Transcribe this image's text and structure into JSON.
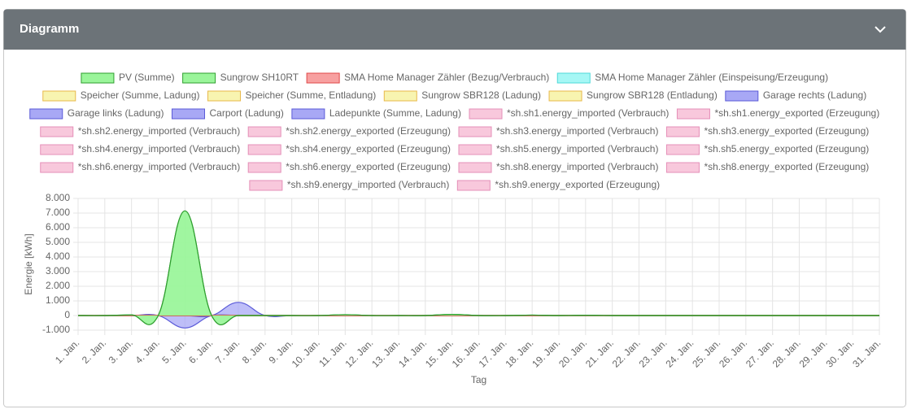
{
  "header": {
    "title": "Diagramm"
  },
  "chart_data": {
    "type": "area",
    "x_label": "Tag",
    "y_label": "Energie [kWh]",
    "categories": [
      "1. Jan.",
      "2. Jan.",
      "3. Jan.",
      "4. Jan.",
      "5. Jan.",
      "6. Jan.",
      "7. Jan.",
      "8. Jan.",
      "9. Jan.",
      "10. Jan.",
      "11. Jan.",
      "12. Jan.",
      "13. Jan.",
      "14. Jan.",
      "15. Jan.",
      "16. Jan.",
      "17. Jan.",
      "18. Jan.",
      "19. Jan.",
      "20. Jan.",
      "21. Jan.",
      "22. Jan.",
      "23. Jan.",
      "24. Jan.",
      "25. Jan.",
      "26. Jan.",
      "27. Jan.",
      "28. Jan.",
      "29. Jan.",
      "30. Jan.",
      "31. Jan."
    ],
    "ylim": [
      -1000,
      8000
    ],
    "yticks": [
      {
        "value": -1000,
        "label": "-1.000"
      },
      0,
      {
        "value": 1000,
        "label": "1.000"
      },
      {
        "value": 2000,
        "label": "2.000"
      },
      {
        "value": 3000,
        "label": "3.000"
      },
      {
        "value": 4000,
        "label": "4.000"
      },
      {
        "value": 5000,
        "label": "5.000"
      },
      {
        "value": 6000,
        "label": "6.000"
      },
      {
        "value": 7000,
        "label": "7.000"
      },
      {
        "value": 8000,
        "label": "8.000"
      }
    ],
    "grid": true,
    "series": [
      {
        "name": "PV (Summe)",
        "color": "#2f9e2f",
        "fill": "#9af59a",
        "values": [
          0,
          0,
          40,
          0,
          7150,
          0,
          0,
          0,
          0,
          0,
          60,
          0,
          0,
          0,
          80,
          0,
          0,
          30,
          0,
          20,
          0,
          0,
          0,
          0,
          0,
          0,
          0,
          0,
          0,
          0,
          0
        ]
      },
      {
        "name": "Sungrow SH10RT",
        "color": "#2f9e2f",
        "fill": "#9af59a",
        "values": [
          0,
          0,
          40,
          0,
          7150,
          0,
          0,
          0,
          0,
          0,
          60,
          0,
          0,
          0,
          80,
          0,
          0,
          30,
          0,
          20,
          0,
          0,
          0,
          0,
          0,
          0,
          0,
          0,
          0,
          0,
          0
        ]
      },
      {
        "name": "SMA Home Manager Zähler (Bezug/Verbrauch)",
        "color": "#e04848",
        "fill": "#f7a0a0",
        "values": [
          0,
          0,
          0,
          0,
          0,
          0,
          0,
          0,
          0,
          0,
          0,
          0,
          0,
          0,
          0,
          0,
          0,
          0,
          0,
          0,
          0,
          0,
          0,
          0,
          0,
          0,
          0,
          0,
          0,
          0,
          0
        ]
      },
      {
        "name": "SMA Home Manager Zähler (Einspeisung/Erzeugung)",
        "color": "#4fd8d8",
        "fill": "#a6f7f5",
        "values": [
          0,
          0,
          0,
          0,
          0,
          0,
          0,
          0,
          0,
          0,
          0,
          0,
          0,
          0,
          0,
          0,
          0,
          0,
          0,
          0,
          0,
          0,
          0,
          0,
          0,
          0,
          0,
          0,
          0,
          0,
          0
        ]
      },
      {
        "name": "Speicher (Summe, Ladung)",
        "color": "#e8b84a",
        "fill": "#f8f4b0",
        "values": [
          0,
          0,
          0,
          0,
          0,
          0,
          0,
          0,
          0,
          0,
          0,
          0,
          0,
          0,
          0,
          0,
          0,
          0,
          0,
          0,
          0,
          0,
          0,
          0,
          0,
          0,
          0,
          0,
          0,
          0,
          0
        ]
      },
      {
        "name": "Speicher (Summe, Entladung)",
        "color": "#e8b84a",
        "fill": "#f8f4b0",
        "values": [
          0,
          0,
          0,
          0,
          0,
          0,
          0,
          0,
          0,
          0,
          0,
          0,
          0,
          0,
          0,
          0,
          0,
          0,
          0,
          0,
          0,
          0,
          0,
          0,
          0,
          0,
          0,
          0,
          0,
          0,
          0
        ]
      },
      {
        "name": "Sungrow SBR128 (Ladung)",
        "color": "#e8b84a",
        "fill": "#f8f4b0",
        "values": [
          0,
          0,
          0,
          0,
          0,
          0,
          0,
          0,
          0,
          0,
          0,
          0,
          0,
          0,
          0,
          0,
          0,
          0,
          0,
          0,
          0,
          0,
          0,
          0,
          0,
          0,
          0,
          0,
          0,
          0,
          0
        ]
      },
      {
        "name": "Sungrow SBR128 (Entladung)",
        "color": "#e8b84a",
        "fill": "#f8f4b0",
        "values": [
          0,
          0,
          0,
          0,
          0,
          0,
          0,
          0,
          0,
          0,
          0,
          0,
          0,
          0,
          0,
          0,
          0,
          0,
          0,
          0,
          0,
          0,
          0,
          0,
          0,
          0,
          0,
          0,
          0,
          0,
          0
        ]
      },
      {
        "name": "Garage rechts (Ladung)",
        "color": "#5a5ad8",
        "fill": "#a8a8f5",
        "values": [
          0,
          0,
          0,
          0,
          0,
          0,
          900,
          0,
          0,
          0,
          0,
          0,
          0,
          0,
          0,
          0,
          0,
          0,
          0,
          0,
          0,
          0,
          0,
          0,
          0,
          0,
          0,
          0,
          0,
          0,
          0
        ]
      },
      {
        "name": "Garage links (Ladung)",
        "color": "#5a5ad8",
        "fill": "#a8a8f5",
        "values": [
          0,
          0,
          0,
          0,
          0,
          0,
          0,
          0,
          0,
          0,
          0,
          0,
          0,
          0,
          0,
          0,
          0,
          0,
          0,
          0,
          0,
          0,
          0,
          0,
          0,
          0,
          0,
          0,
          0,
          0,
          0
        ]
      },
      {
        "name": "Carport (Ladung)",
        "color": "#5a5ad8",
        "fill": "#a8a8f5",
        "values": [
          0,
          0,
          0,
          0,
          -850,
          0,
          0,
          0,
          0,
          0,
          0,
          0,
          0,
          0,
          0,
          0,
          0,
          0,
          0,
          0,
          0,
          0,
          0,
          0,
          0,
          0,
          0,
          0,
          0,
          0,
          0
        ]
      },
      {
        "name": "Ladepunkte (Summe, Ladung)",
        "color": "#5a5ad8",
        "fill": "#a8a8f5",
        "values": [
          0,
          0,
          0,
          0,
          0,
          0,
          0,
          0,
          0,
          0,
          0,
          0,
          0,
          0,
          0,
          0,
          0,
          0,
          0,
          0,
          0,
          0,
          0,
          0,
          0,
          0,
          0,
          0,
          0,
          0,
          0
        ]
      },
      {
        "name": "*sh.sh1.energy_imported (Verbrauch)",
        "color": "#e58fb8",
        "fill": "#f8c8dc",
        "values": [
          0,
          0,
          0,
          0,
          0,
          0,
          0,
          0,
          0,
          0,
          0,
          0,
          0,
          0,
          0,
          0,
          0,
          0,
          0,
          0,
          0,
          0,
          0,
          0,
          0,
          0,
          0,
          0,
          0,
          0,
          0
        ]
      },
      {
        "name": "*sh.sh1.energy_exported (Erzeugung)",
        "color": "#e58fb8",
        "fill": "#f8c8dc",
        "values": [
          0,
          0,
          0,
          0,
          0,
          0,
          0,
          0,
          0,
          0,
          0,
          0,
          0,
          0,
          0,
          0,
          0,
          0,
          0,
          0,
          0,
          0,
          0,
          0,
          0,
          0,
          0,
          0,
          0,
          0,
          0
        ]
      },
      {
        "name": "*sh.sh2.energy_imported (Verbrauch)",
        "color": "#e58fb8",
        "fill": "#f8c8dc",
        "values": [
          0,
          0,
          0,
          0,
          0,
          0,
          0,
          0,
          0,
          0,
          0,
          0,
          0,
          0,
          0,
          0,
          0,
          0,
          0,
          0,
          0,
          0,
          0,
          0,
          0,
          0,
          0,
          0,
          0,
          0,
          0
        ]
      },
      {
        "name": "*sh.sh2.energy_exported (Erzeugung)",
        "color": "#e58fb8",
        "fill": "#f8c8dc",
        "values": [
          0,
          0,
          0,
          0,
          0,
          0,
          0,
          0,
          0,
          0,
          0,
          0,
          0,
          0,
          0,
          0,
          0,
          0,
          0,
          0,
          0,
          0,
          0,
          0,
          0,
          0,
          0,
          0,
          0,
          0,
          0
        ]
      },
      {
        "name": "*sh.sh3.energy_imported (Verbrauch)",
        "color": "#e58fb8",
        "fill": "#f8c8dc",
        "values": [
          0,
          0,
          0,
          0,
          0,
          0,
          0,
          0,
          0,
          0,
          0,
          0,
          0,
          0,
          0,
          0,
          0,
          0,
          0,
          0,
          0,
          0,
          0,
          0,
          0,
          0,
          0,
          0,
          0,
          0,
          0
        ]
      },
      {
        "name": "*sh.sh3.energy_exported (Erzeugung)",
        "color": "#e58fb8",
        "fill": "#f8c8dc",
        "values": [
          0,
          0,
          0,
          0,
          0,
          0,
          0,
          0,
          0,
          0,
          0,
          0,
          0,
          0,
          0,
          0,
          0,
          0,
          0,
          0,
          0,
          0,
          0,
          0,
          0,
          0,
          0,
          0,
          0,
          0,
          0
        ]
      },
      {
        "name": "*sh.sh4.energy_imported (Verbrauch)",
        "color": "#e58fb8",
        "fill": "#f8c8dc",
        "values": [
          0,
          0,
          0,
          0,
          0,
          0,
          0,
          0,
          0,
          0,
          0,
          0,
          0,
          0,
          0,
          0,
          0,
          0,
          0,
          0,
          0,
          0,
          0,
          0,
          0,
          0,
          0,
          0,
          0,
          0,
          0
        ]
      },
      {
        "name": "*sh.sh4.energy_exported (Erzeugung)",
        "color": "#e58fb8",
        "fill": "#f8c8dc",
        "values": [
          0,
          0,
          0,
          0,
          0,
          0,
          0,
          0,
          0,
          0,
          0,
          0,
          0,
          0,
          0,
          0,
          0,
          0,
          0,
          0,
          0,
          0,
          0,
          0,
          0,
          0,
          0,
          0,
          0,
          0,
          0
        ]
      },
      {
        "name": "*sh.sh5.energy_imported (Verbrauch)",
        "color": "#e58fb8",
        "fill": "#f8c8dc",
        "values": [
          0,
          0,
          0,
          0,
          0,
          0,
          0,
          0,
          0,
          0,
          0,
          0,
          0,
          0,
          0,
          0,
          0,
          0,
          0,
          0,
          0,
          0,
          0,
          0,
          0,
          0,
          0,
          0,
          0,
          0,
          0
        ]
      },
      {
        "name": "*sh.sh5.energy_exported (Erzeugung)",
        "color": "#e58fb8",
        "fill": "#f8c8dc",
        "values": [
          0,
          0,
          0,
          0,
          0,
          0,
          0,
          0,
          0,
          0,
          0,
          0,
          0,
          0,
          0,
          0,
          0,
          0,
          0,
          0,
          0,
          0,
          0,
          0,
          0,
          0,
          0,
          0,
          0,
          0,
          0
        ]
      },
      {
        "name": "*sh.sh6.energy_imported (Verbrauch)",
        "color": "#e58fb8",
        "fill": "#f8c8dc",
        "values": [
          0,
          0,
          0,
          0,
          0,
          0,
          0,
          0,
          0,
          0,
          0,
          0,
          0,
          0,
          0,
          0,
          0,
          0,
          0,
          0,
          0,
          0,
          0,
          0,
          0,
          0,
          0,
          0,
          0,
          0,
          0
        ]
      },
      {
        "name": "*sh.sh6.energy_exported (Erzeugung)",
        "color": "#e58fb8",
        "fill": "#f8c8dc",
        "values": [
          0,
          0,
          0,
          0,
          0,
          0,
          0,
          0,
          0,
          0,
          0,
          0,
          0,
          0,
          0,
          0,
          0,
          0,
          0,
          0,
          0,
          0,
          0,
          0,
          0,
          0,
          0,
          0,
          0,
          0,
          0
        ]
      },
      {
        "name": "*sh.sh8.energy_imported (Verbrauch)",
        "color": "#e58fb8",
        "fill": "#f8c8dc",
        "values": [
          0,
          0,
          0,
          0,
          0,
          0,
          0,
          0,
          0,
          0,
          0,
          0,
          0,
          0,
          0,
          0,
          0,
          0,
          0,
          0,
          0,
          0,
          0,
          0,
          0,
          0,
          0,
          0,
          0,
          0,
          0
        ]
      },
      {
        "name": "*sh.sh8.energy_exported (Erzeugung)",
        "color": "#e58fb8",
        "fill": "#f8c8dc",
        "values": [
          0,
          0,
          0,
          0,
          0,
          0,
          0,
          0,
          0,
          0,
          0,
          0,
          0,
          0,
          0,
          0,
          0,
          0,
          0,
          0,
          0,
          0,
          0,
          0,
          0,
          0,
          0,
          0,
          0,
          0,
          0
        ]
      },
      {
        "name": "*sh.sh9.energy_imported (Verbrauch)",
        "color": "#e58fb8",
        "fill": "#f8c8dc",
        "values": [
          0,
          0,
          0,
          0,
          0,
          0,
          0,
          0,
          0,
          0,
          0,
          0,
          0,
          0,
          0,
          0,
          0,
          0,
          0,
          0,
          0,
          0,
          0,
          0,
          0,
          0,
          0,
          0,
          0,
          0,
          0
        ]
      },
      {
        "name": "*sh.sh9.energy_exported (Erzeugung)",
        "color": "#e58fb8",
        "fill": "#f8c8dc",
        "values": [
          0,
          0,
          0,
          0,
          0,
          0,
          0,
          0,
          0,
          0,
          0,
          0,
          0,
          0,
          0,
          0,
          0,
          0,
          0,
          0,
          0,
          0,
          0,
          0,
          0,
          0,
          0,
          0,
          0,
          0,
          0
        ]
      }
    ]
  }
}
